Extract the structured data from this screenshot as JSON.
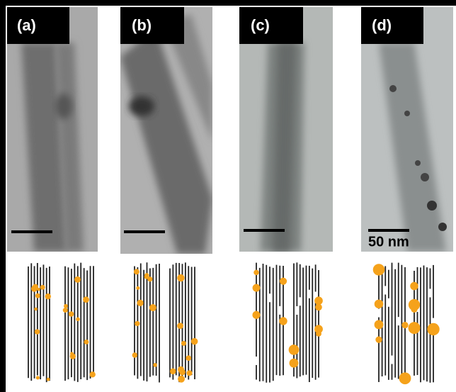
{
  "panels": [
    {
      "label": "(a)"
    },
    {
      "label": "(b)"
    },
    {
      "label": "(c)"
    },
    {
      "label": "(d)"
    }
  ],
  "scale_bar": "50 nm"
}
